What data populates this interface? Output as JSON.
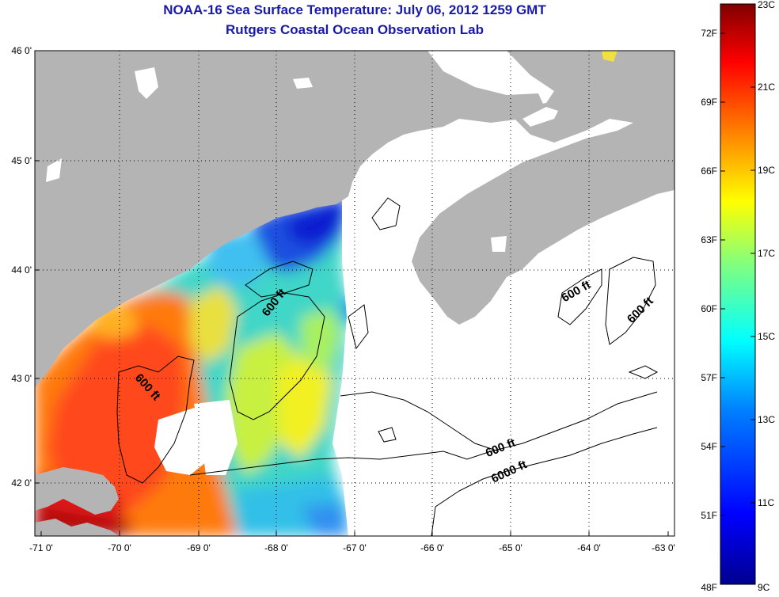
{
  "title": "NOAA-16 Sea Surface Temperature:  July 06, 2012 1259 GMT",
  "subtitle": "Rutgers Coastal Ocean Observation Lab",
  "map": {
    "lon_range": [
      -71,
      -63
    ],
    "lat_range": [
      41.5,
      46
    ],
    "lon_ticks": [
      "-71 0'",
      "-70 0'",
      "-69 0'",
      "-68 0'",
      "-67 0'",
      "-66 0'",
      "-65 0'",
      "-64 0'",
      "-63 0'"
    ],
    "lat_ticks": [
      "46 0'",
      "45 0'",
      "44 0'",
      "43 0'",
      "42 0'"
    ],
    "grid": "dotted",
    "land_color": "#b4b4b4",
    "no_data_color": "#ffffff",
    "contour_labels": [
      {
        "text": "600 ft",
        "lon": -67.9,
        "lat": 43.6,
        "angle": -52
      },
      {
        "text": "600 ft",
        "lon": -69.85,
        "lat": 42.8,
        "angle": 48
      },
      {
        "text": "600 ft",
        "lon": -64.1,
        "lat": 43.8,
        "angle": -30
      },
      {
        "text": "600 ft",
        "lon": -63.35,
        "lat": 43.55,
        "angle": -45
      },
      {
        "text": "600 ft",
        "lon": -65.15,
        "lat": 42.25,
        "angle": -22
      },
      {
        "text": "6000 ft",
        "lon": -65.15,
        "lat": 42.05,
        "angle": -25
      }
    ]
  },
  "colorbar": {
    "celsius_labels": [
      "23C",
      "21C",
      "19C",
      "17C",
      "15C",
      "13C",
      "11C",
      "9C"
    ],
    "fahrenheit_labels": [
      "72F",
      "69F",
      "66F",
      "63F",
      "60F",
      "57F",
      "54F",
      "51F",
      "48F"
    ],
    "range_c": [
      9,
      23
    ],
    "colors": [
      "#00008f",
      "#0000ff",
      "#0080ff",
      "#00ffff",
      "#80ff80",
      "#ffff00",
      "#ff8000",
      "#ff0000",
      "#800000"
    ]
  }
}
